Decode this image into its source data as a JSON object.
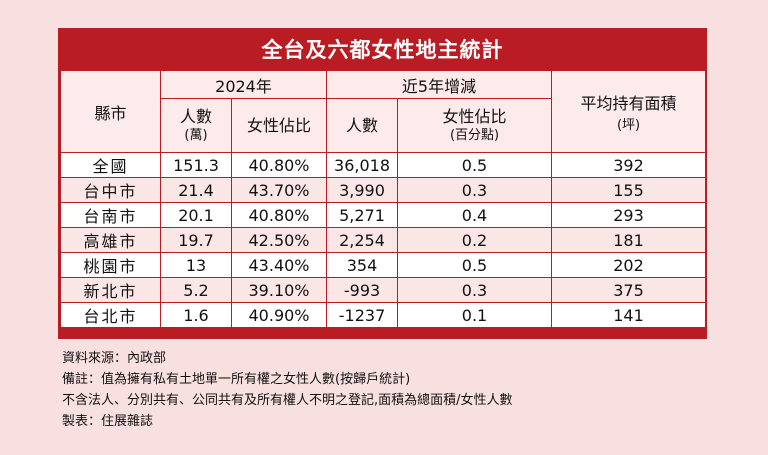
{
  "title": "全台及六都女性地主統計",
  "header": {
    "city": "縣市",
    "year_group": "2024年",
    "change_group": "近5年增減",
    "avg_area": "平均持有面積",
    "avg_area_unit": "(坪)",
    "people": "人數",
    "people_unit": "(萬)",
    "female_ratio": "女性佔比",
    "change_people": "人數",
    "change_ratio": "女性佔比",
    "change_ratio_unit": "(百分點)"
  },
  "rows": [
    {
      "city": "全國",
      "people": "151.3",
      "ratio": "40.80%",
      "chg_people": "36,018",
      "chg_ratio": "0.5",
      "area": "392"
    },
    {
      "city": "台中市",
      "people": "21.4",
      "ratio": "43.70%",
      "chg_people": "3,990",
      "chg_ratio": "0.3",
      "area": "155"
    },
    {
      "city": "台南市",
      "people": "20.1",
      "ratio": "40.80%",
      "chg_people": "5,271",
      "chg_ratio": "0.4",
      "area": "293"
    },
    {
      "city": "高雄市",
      "people": "19.7",
      "ratio": "42.50%",
      "chg_people": "2,254",
      "chg_ratio": "0.2",
      "area": "181"
    },
    {
      "city": "桃園市",
      "people": "13",
      "ratio": "43.40%",
      "chg_people": "354",
      "chg_ratio": "0.5",
      "area": "202"
    },
    {
      "city": "新北市",
      "people": "5.2",
      "ratio": "39.10%",
      "chg_people": "-993",
      "chg_ratio": "0.3",
      "area": "375"
    },
    {
      "city": "台北市",
      "people": "1.6",
      "ratio": "40.90%",
      "chg_people": "-1237",
      "chg_ratio": "0.1",
      "area": "141"
    }
  ],
  "notes": {
    "source": "資料來源：內政部",
    "remark": "備註：值為擁有私有土地單一所有權之女性人數(按歸戶統計)",
    "exclusion": "不含法人、分別共有、公同共有及所有權人不明之登記,面積為總面積/女性人數",
    "maker": "製表：住展雜誌"
  },
  "colors": {
    "accent": "#b91c22",
    "background": "#f9e0e0",
    "row_alt": "#fbe6e6"
  }
}
